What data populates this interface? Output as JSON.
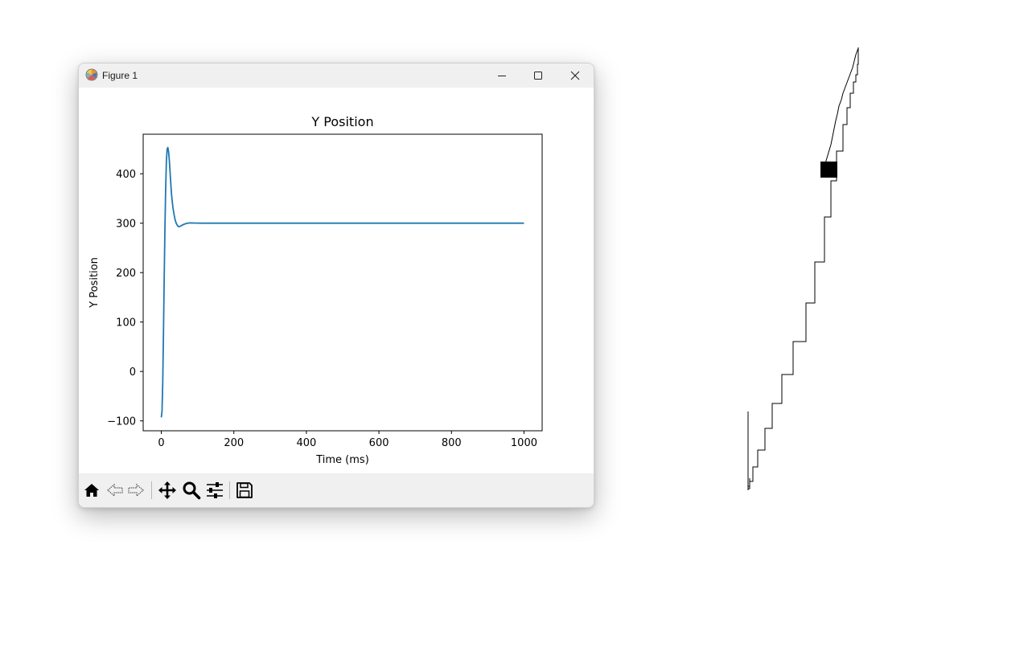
{
  "window": {
    "title": "Figure 1",
    "controls": [
      "minimize",
      "maximize",
      "close"
    ]
  },
  "toolbar": {
    "tools": [
      "home-icon",
      "back-icon",
      "forward-icon",
      "pan-icon",
      "zoom-icon",
      "configure-subplots-icon",
      "save-icon"
    ]
  },
  "chart_data": {
    "type": "line",
    "title": "Y Position",
    "xlabel": "Time (ms)",
    "ylabel": "Y Position",
    "xlim": [
      -50,
      1050
    ],
    "ylim": [
      -120,
      480
    ],
    "xticks": [
      0,
      200,
      400,
      600,
      800,
      1000
    ],
    "yticks": [
      -100,
      0,
      100,
      200,
      300,
      400
    ],
    "ytick_labels": [
      "−100",
      "0",
      "100",
      "200",
      "300",
      "400"
    ],
    "grid": false,
    "line_color": "#1f77b4",
    "series": [
      {
        "x": [
          0,
          2,
          4,
          6,
          8,
          10,
          12,
          14,
          16,
          18,
          20,
          22,
          24,
          26,
          28,
          30,
          32,
          35,
          38,
          41,
          44,
          47,
          50,
          55,
          60,
          65,
          70,
          75,
          80,
          90,
          100,
          110,
          120,
          140,
          160,
          200,
          300,
          400,
          500,
          600,
          700,
          800,
          900,
          1000
        ],
        "y": [
          -93,
          -80,
          -20,
          80,
          190,
          290,
          370,
          425,
          450,
          453,
          445,
          428,
          405,
          382,
          360,
          345,
          332,
          318,
          307,
          300,
          296,
          293,
          293,
          295,
          297,
          298.5,
          299.5,
          300.3,
          300.5,
          300.3,
          300.1,
          300,
          300,
          300,
          300,
          300,
          300,
          300,
          300,
          300,
          300,
          300,
          300,
          300
        ]
      }
    ]
  },
  "sketch_color": "#000000"
}
